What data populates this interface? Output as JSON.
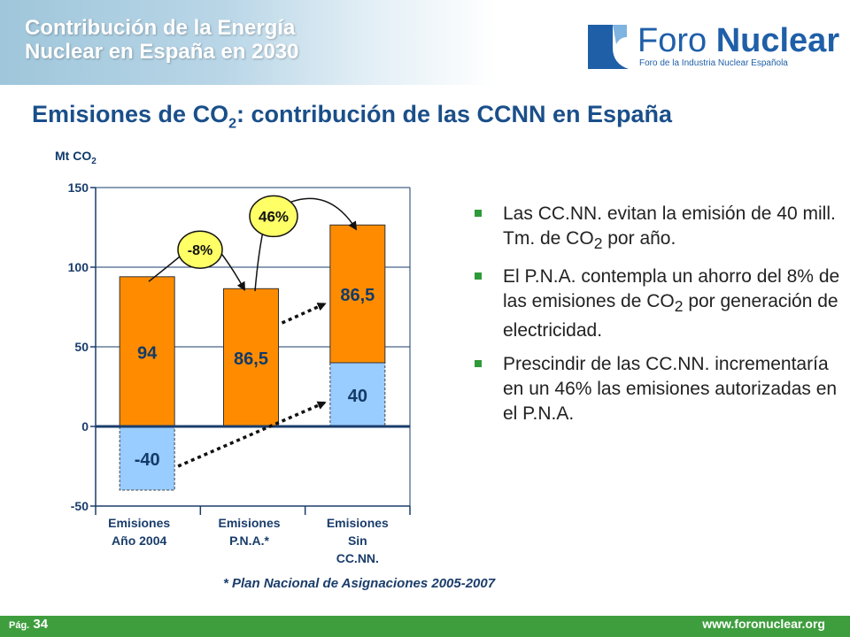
{
  "header": {
    "title_line1": "Contribución de la Energía",
    "title_line2": "Nuclear en España en 2030"
  },
  "logo": {
    "text_light": "Foro ",
    "text_bold": "Nuclear",
    "subtitle": "Foro de la Industria Nuclear Española"
  },
  "main_title": {
    "prefix": "Emisiones de CO",
    "subscript": "2",
    "suffix": ": contribución de las CCNN en España"
  },
  "unit_label": {
    "text": "Mt CO",
    "subscript": "2"
  },
  "chart_data": {
    "type": "bar",
    "stacked": true,
    "categories": [
      "Emisiones Año 2004",
      "Emisiones P.N.A.*",
      "Emisiones Sin CC.NN."
    ],
    "category_lines": [
      [
        "Emisiones",
        "Año 2004"
      ],
      [
        "Emisiones",
        "P.N.A.*"
      ],
      [
        "Emisiones",
        "Sin",
        "CC.NN."
      ]
    ],
    "series": [
      {
        "values": [
          -40,
          0,
          40
        ],
        "labels": [
          "-40",
          "",
          "40"
        ],
        "color": "#99ccff"
      },
      {
        "values": [
          94,
          86.5,
          86.5
        ],
        "labels": [
          "94",
          "86,5",
          "86,5"
        ],
        "color": "#ff8c00"
      }
    ],
    "ylim": [
      -50,
      150
    ],
    "yticks": [
      -50,
      0,
      50,
      100,
      150
    ],
    "ylabel": "Mt CO2",
    "grid": true,
    "annotations": [
      {
        "text": "-8%",
        "from": "Emisiones Año 2004",
        "to": "Emisiones P.N.A.*",
        "color": "#ffff66"
      },
      {
        "text": "46%",
        "from": "Emisiones P.N.A.*",
        "to": "Emisiones Sin CC.NN.",
        "color": "#ffff66"
      }
    ]
  },
  "bullets": [
    {
      "parts": [
        "Las CC.NN. evitan la emisión de 40 mill. Tm. de CO",
        "2",
        " por año."
      ]
    },
    {
      "parts": [
        "El P.N.A. contempla un ahorro del 8% de las emisiones de CO",
        "2",
        " por generación de electricidad."
      ]
    },
    {
      "parts": [
        "Prescindir de las CC.NN. incrementaría en un 46% las emisiones autorizadas en el P.N.A.",
        "",
        ""
      ]
    }
  ],
  "footnote": "* Plan Nacional de Asignaciones 2005-2007",
  "footer": {
    "page_prefix": "Pág.",
    "page_number": "34",
    "website": "www.foronuclear.org"
  },
  "colors": {
    "title_blue": "#1a4f8a",
    "footer_green": "#3e9e3e",
    "bar_orange": "#ff8c00",
    "bar_lightblue": "#99ccff",
    "callout_yellow": "#ffff66"
  }
}
